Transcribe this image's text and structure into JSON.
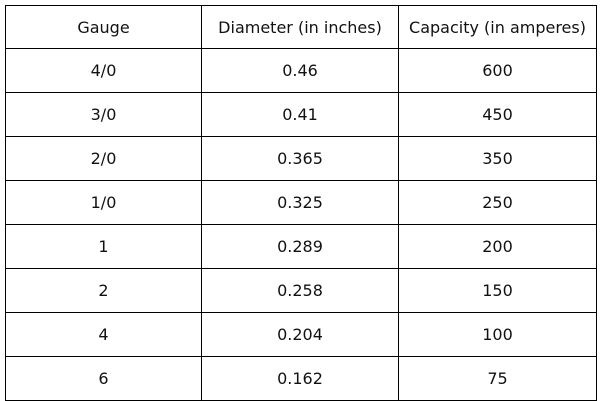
{
  "table": {
    "header": [
      "Gauge",
      "Diameter (in inches)",
      "Capacity (in amperes)"
    ],
    "rows": [
      [
        "4/0",
        "0.46",
        "600"
      ],
      [
        "3/0",
        "0.41",
        "450"
      ],
      [
        "2/0",
        "0.365",
        "350"
      ],
      [
        "1/0",
        "0.325",
        "250"
      ],
      [
        "1",
        "0.289",
        "200"
      ],
      [
        "2",
        "0.258",
        "150"
      ],
      [
        "4",
        "0.204",
        "100"
      ],
      [
        "6",
        "0.162",
        "75"
      ]
    ]
  }
}
